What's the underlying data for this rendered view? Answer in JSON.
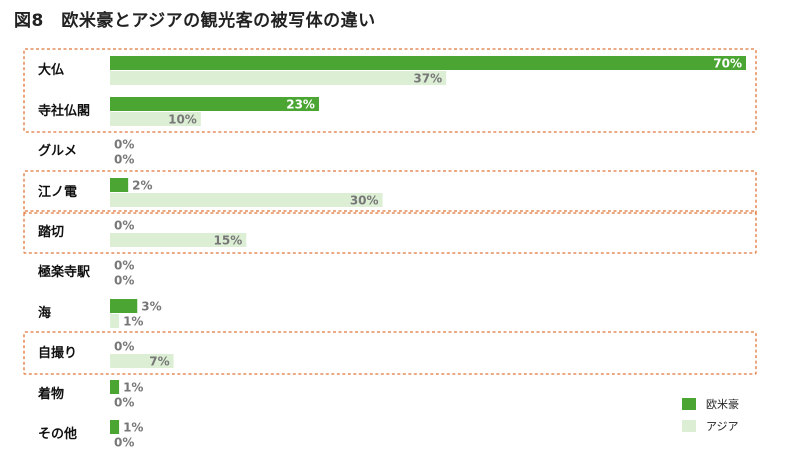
{
  "chart_data": {
    "type": "bar",
    "orientation": "horizontal",
    "title": "図8　欧米豪とアジアの観光客の被写体の違い",
    "categories": [
      "大仏",
      "寺社仏閣",
      "グルメ",
      "江ノ電",
      "踏切",
      "極楽寺駅",
      "海",
      "自撮り",
      "着物",
      "その他"
    ],
    "series": [
      {
        "name": "欧米豪",
        "values": [
          70,
          23,
          0,
          2,
          0,
          0,
          3,
          0,
          1,
          1
        ],
        "labels": [
          "70%",
          "23%",
          "0%",
          "2%",
          "0%",
          "0%",
          "3%",
          "0%",
          "1%",
          "1%"
        ]
      },
      {
        "name": "アジア",
        "values": [
          37,
          10,
          0,
          30,
          15,
          0,
          1,
          7,
          0,
          0
        ],
        "labels": [
          "37%",
          "10%",
          "0%",
          "30%",
          "15%",
          "0%",
          "1%",
          "7%",
          "0%",
          "0%"
        ]
      }
    ],
    "xlim": [
      0,
      70
    ],
    "highlighted_categories": [
      "大仏",
      "寺社仏閣",
      "江ノ電",
      "踏切",
      "自撮り"
    ],
    "legend": "bottom-right",
    "colors": {
      "欧米豪": "#4aa532",
      "アジア": "#dcefd5",
      "highlight_border": "#e0773a",
      "label_gray": "#777777"
    }
  }
}
